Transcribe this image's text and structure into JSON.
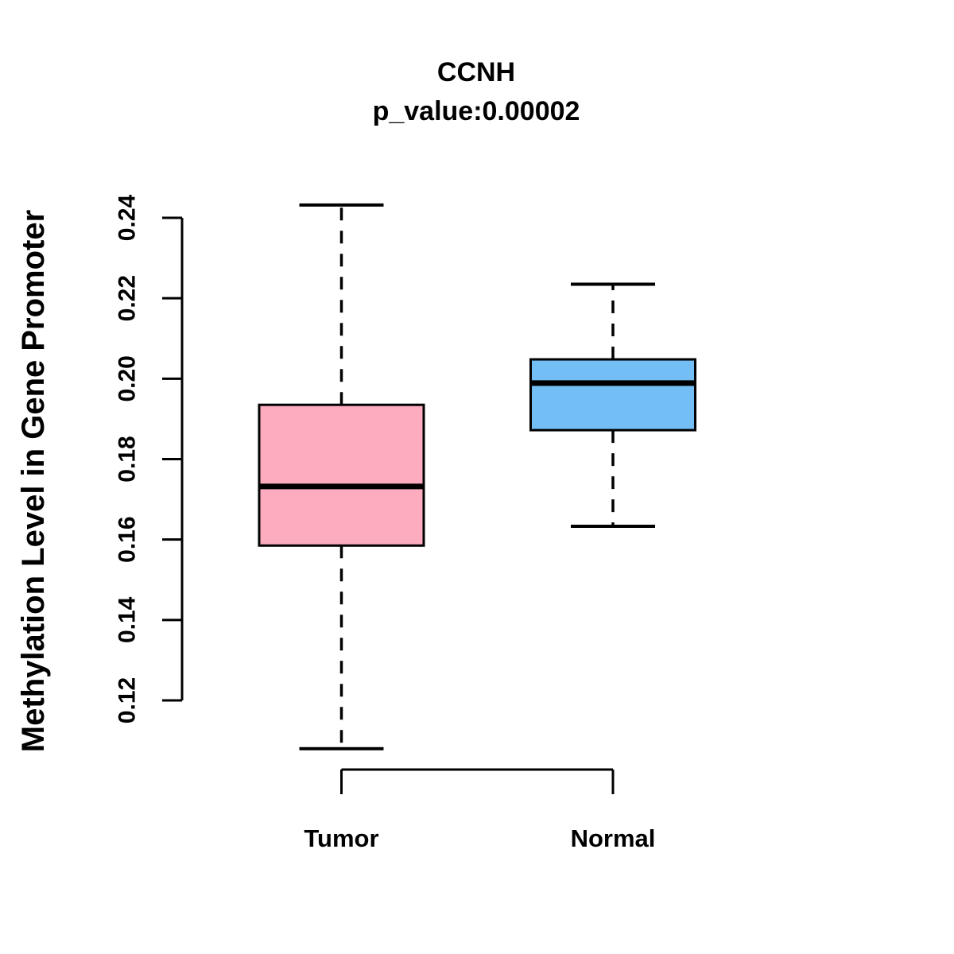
{
  "figure": {
    "title": "CCNH",
    "subtitle": "p_value:0.00002",
    "y_axis_label": "Methylation Level in Gene Promoter"
  },
  "chart_data": {
    "type": "boxplot",
    "title": "CCNH",
    "subtitle": "p_value:0.00002",
    "xlabel": "",
    "ylabel": "Methylation Level in Gene Promoter",
    "ylim": [
      0.12,
      0.24
    ],
    "y_ticks": [
      0.12,
      0.14,
      0.16,
      0.18,
      0.2,
      0.22,
      0.24
    ],
    "grid": false,
    "legend_position": "none",
    "categories": [
      "Tumor",
      "Normal"
    ],
    "series": [
      {
        "name": "Tumor",
        "box_fill": "#FCACBE",
        "whisker_low": 0.108,
        "q1": 0.1585,
        "median": 0.1732,
        "q3": 0.1935,
        "whisker_high": 0.2432
      },
      {
        "name": "Normal",
        "box_fill": "#73BEF5",
        "whisker_low": 0.1633,
        "q1": 0.1872,
        "median": 0.1989,
        "q3": 0.2048,
        "whisker_high": 0.2235
      }
    ],
    "colors": {
      "box_border": "#000000",
      "median_line": "#000000",
      "axis": "#000000",
      "text": "#000000",
      "background": "#FFFFFF"
    }
  }
}
